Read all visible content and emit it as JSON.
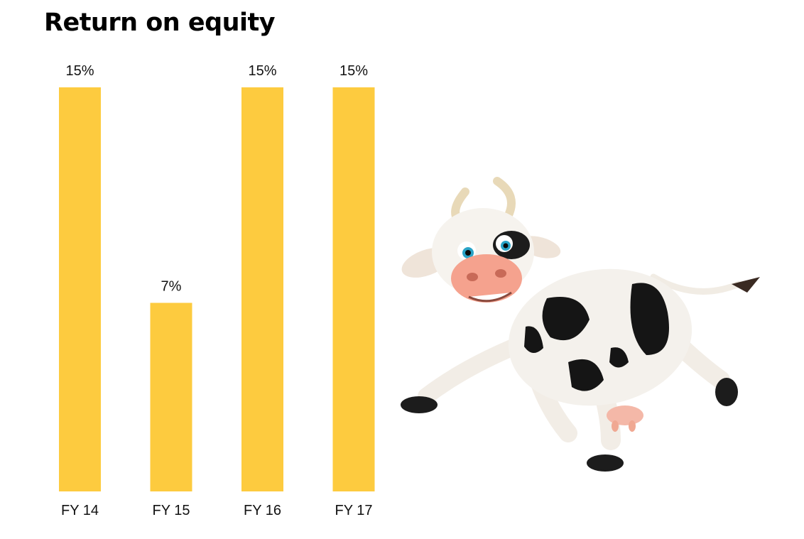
{
  "chart_data": {
    "type": "bar",
    "title": "Return on equity",
    "categories": [
      "FY 14",
      "FY 15",
      "FY 16",
      "FY 17"
    ],
    "values": [
      15,
      7,
      15,
      15
    ],
    "data_labels": [
      "15%",
      "7%",
      "15%",
      "15%"
    ],
    "ylim": [
      0,
      15
    ],
    "grid": false,
    "bar_color": "#FDCB3F"
  },
  "illustration": "cartoon-cow"
}
